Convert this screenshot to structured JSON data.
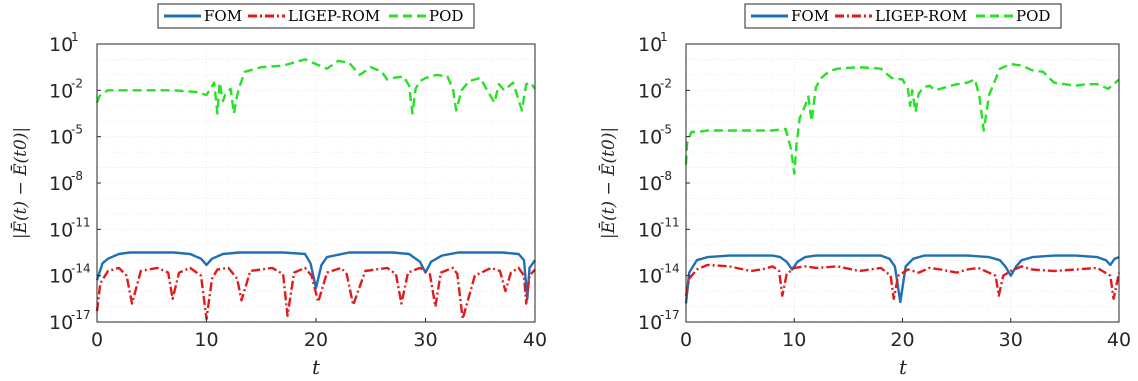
{
  "legend": {
    "labels": [
      "FOM",
      "LIGEP-ROM",
      "POD"
    ]
  },
  "chart_data": [
    {
      "type": "line",
      "xlabel": "t",
      "ylabel": "|Ē(t) − Ē(t0)|",
      "x_ticks": [
        "0",
        "10",
        "20",
        "30",
        "40"
      ],
      "y_tick_exponents": [
        "1",
        "-2",
        "-5",
        "-8",
        "-11",
        "-14",
        "-17"
      ],
      "xlim": [
        0,
        40
      ],
      "ylim_log10": [
        -17,
        1
      ],
      "yscale": "log",
      "grid": true,
      "legend_position": "top-center",
      "series": [
        {
          "name": "FOM",
          "color": "#1f6fb4",
          "style": "solid",
          "x": [
            0,
            0.5,
            1,
            2,
            3,
            5,
            7,
            8.5,
            9.5,
            10,
            10.5,
            11.5,
            13,
            15,
            17,
            19,
            19.5,
            20,
            20.5,
            21,
            23,
            25,
            27,
            28.5,
            29.5,
            30,
            30.5,
            31.5,
            33,
            35,
            37,
            38.5,
            39,
            39.3,
            39.5,
            40
          ],
          "y": [
            -14.3,
            -13.2,
            -12.9,
            -12.6,
            -12.5,
            -12.5,
            -12.5,
            -12.6,
            -12.9,
            -13.3,
            -12.9,
            -12.6,
            -12.5,
            -12.5,
            -12.5,
            -12.6,
            -13.2,
            -14.8,
            -13.3,
            -12.8,
            -12.5,
            -12.5,
            -12.5,
            -12.6,
            -13.1,
            -13.8,
            -13.1,
            -12.7,
            -12.5,
            -12.5,
            -12.5,
            -12.6,
            -13.0,
            -15.5,
            -13.5,
            -13.0
          ]
        },
        {
          "name": "LIGEP-ROM",
          "color": "#e31a1c",
          "style": "dash-dot",
          "x": [
            0,
            0.3,
            1,
            2,
            2.7,
            3.2,
            4,
            5.5,
            6.5,
            6.9,
            7.5,
            8.5,
            9.5,
            10,
            10.5,
            11,
            12,
            12.8,
            13.2,
            14,
            16,
            17,
            17.4,
            18,
            19,
            19.6,
            20.2,
            21,
            22.3,
            22.8,
            23.4,
            24.5,
            26.5,
            27.3,
            27.8,
            28.4,
            29.5,
            30.4,
            30.9,
            31.4,
            32.5,
            32.9,
            33.4,
            34.5,
            36,
            36.8,
            37.3,
            37.8,
            38.5,
            39,
            39.2,
            39.5,
            40
          ],
          "y": [
            -16.3,
            -14.5,
            -13.7,
            -13.5,
            -14.0,
            -15.8,
            -13.7,
            -13.5,
            -13.8,
            -15.5,
            -13.8,
            -13.5,
            -14.0,
            -16.8,
            -14.2,
            -13.6,
            -13.5,
            -14.2,
            -15.6,
            -13.7,
            -13.5,
            -13.9,
            -16.6,
            -13.8,
            -13.5,
            -14.0,
            -15.7,
            -13.8,
            -13.5,
            -13.9,
            -15.9,
            -13.7,
            -13.5,
            -13.9,
            -15.8,
            -13.8,
            -13.5,
            -13.9,
            -16.0,
            -13.8,
            -13.5,
            -13.9,
            -16.8,
            -14.0,
            -13.5,
            -13.7,
            -15.0,
            -13.8,
            -13.5,
            -14.0,
            -15.8,
            -14.0,
            -13.6
          ]
        },
        {
          "name": "POD",
          "color": "#27e127",
          "style": "dashed",
          "x": [
            0,
            0.2,
            0.5,
            1,
            3,
            5,
            7,
            9,
            10,
            10.7,
            11,
            11.2,
            11.5,
            11.7,
            12.2,
            12.5,
            12.8,
            13,
            13.5,
            14,
            15,
            17,
            19,
            20,
            21,
            22,
            23,
            24,
            25,
            26,
            26.5,
            27,
            28,
            28.5,
            28.8,
            29.1,
            29.5,
            30,
            31,
            32,
            32.5,
            32.8,
            33.3,
            34,
            35,
            35.8,
            36.3,
            36.7,
            37.2,
            38,
            38.8,
            39.2,
            39.6,
            40
          ],
          "y": [
            -2.8,
            -2.4,
            -2.2,
            -2.0,
            -2.0,
            -2.0,
            -2.0,
            -2.1,
            -2.3,
            -1.5,
            -3.5,
            -1.5,
            -2.7,
            -2.3,
            -1.9,
            -3.5,
            -2.3,
            -1.8,
            -0.8,
            -0.7,
            -0.5,
            -0.4,
            0.0,
            -0.3,
            -0.6,
            -0.1,
            -0.2,
            -1.0,
            -0.5,
            -0.8,
            -1.3,
            -1.2,
            -1.1,
            -1.7,
            -3.5,
            -1.9,
            -1.4,
            -1.2,
            -1.0,
            -1.1,
            -1.9,
            -3.3,
            -2.0,
            -1.4,
            -1.2,
            -2.2,
            -2.8,
            -1.6,
            -2.0,
            -1.5,
            -3.3,
            -1.6,
            -1.5,
            -1.9
          ]
        }
      ]
    },
    {
      "type": "line",
      "xlabel": "t",
      "ylabel": "|Ē(t) − Ē(t0)|",
      "x_ticks": [
        "0",
        "10",
        "20",
        "30",
        "40"
      ],
      "y_tick_exponents": [
        "1",
        "-2",
        "-5",
        "-8",
        "-11",
        "-14",
        "-17"
      ],
      "xlim": [
        0,
        40
      ],
      "ylim_log10": [
        -17,
        1
      ],
      "yscale": "log",
      "grid": true,
      "legend_position": "top-center",
      "series": [
        {
          "name": "FOM",
          "color": "#1f6fb4",
          "style": "solid",
          "x": [
            0,
            0.3,
            1,
            2,
            4,
            6,
            8,
            8.7,
            9.3,
            9.8,
            10.3,
            11,
            12,
            14,
            16,
            18,
            18.8,
            19.3,
            19.8,
            20.3,
            21,
            22,
            24,
            26,
            28,
            29,
            29.5,
            30,
            30.5,
            31,
            32,
            34,
            36,
            38,
            38.8,
            39.2,
            39.6,
            40
          ],
          "y": [
            -15.8,
            -13.8,
            -13.0,
            -12.8,
            -12.7,
            -12.7,
            -12.7,
            -12.8,
            -13.1,
            -13.6,
            -13.1,
            -12.8,
            -12.7,
            -12.7,
            -12.7,
            -12.7,
            -12.9,
            -13.4,
            -15.7,
            -13.4,
            -12.9,
            -12.7,
            -12.7,
            -12.7,
            -12.8,
            -13.0,
            -13.4,
            -14.0,
            -13.4,
            -13.0,
            -12.8,
            -12.7,
            -12.7,
            -12.8,
            -13.0,
            -13.3,
            -12.9,
            -12.8
          ]
        },
        {
          "name": "LIGEP-ROM",
          "color": "#e31a1c",
          "style": "dash-dot",
          "x": [
            0,
            0.3,
            1,
            2,
            4,
            6,
            7,
            8,
            8.6,
            8.9,
            9.3,
            10,
            11,
            12,
            14,
            16,
            17,
            18,
            18.9,
            19.2,
            19.6,
            20.5,
            21.5,
            22.5,
            23.5,
            25,
            26,
            27,
            28.6,
            28.9,
            29.3,
            30,
            31,
            32,
            34,
            36,
            38,
            39.2,
            39.5,
            40
          ],
          "y": [
            -15.3,
            -14.2,
            -13.6,
            -13.3,
            -13.4,
            -13.7,
            -13.6,
            -13.4,
            -13.7,
            -15.3,
            -13.9,
            -13.5,
            -13.4,
            -13.5,
            -13.4,
            -13.7,
            -13.6,
            -13.5,
            -14.0,
            -15.5,
            -14.0,
            -13.6,
            -13.8,
            -13.5,
            -13.6,
            -13.8,
            -13.6,
            -13.5,
            -14.0,
            -15.3,
            -14.0,
            -13.7,
            -13.4,
            -13.6,
            -13.7,
            -13.6,
            -13.5,
            -14.0,
            -15.5,
            -13.8
          ]
        },
        {
          "name": "POD",
          "color": "#27e127",
          "style": "dashed",
          "x": [
            0,
            0.1,
            0.5,
            1,
            2,
            4,
            6,
            8,
            9.2,
            9.7,
            10,
            10.2,
            10.5,
            11,
            11.3,
            11.6,
            12,
            12.5,
            13,
            13.5,
            14,
            16,
            18,
            19,
            20,
            20.5,
            20.7,
            20.9,
            21.2,
            21.5,
            22,
            22.5,
            23,
            24,
            25,
            26,
            26.7,
            27.1,
            27.5,
            28,
            29,
            30,
            31,
            32,
            33,
            34,
            35,
            36,
            37,
            38,
            39,
            40
          ],
          "y": [
            -6.8,
            -5.4,
            -4.7,
            -4.7,
            -4.6,
            -4.6,
            -4.6,
            -4.6,
            -4.5,
            -5.8,
            -7.4,
            -5.6,
            -3.8,
            -3.0,
            -2.4,
            -4.0,
            -1.8,
            -1.2,
            -0.9,
            -0.7,
            -0.6,
            -0.5,
            -0.6,
            -1.2,
            -1.3,
            -1.9,
            -3.0,
            -2.0,
            -3.4,
            -2.2,
            -1.8,
            -1.7,
            -2.0,
            -1.8,
            -1.6,
            -1.5,
            -1.3,
            -2.4,
            -4.6,
            -2.3,
            -0.6,
            -0.3,
            -0.4,
            -0.7,
            -0.8,
            -1.5,
            -1.6,
            -1.7,
            -1.6,
            -1.6,
            -1.9,
            -1.3
          ]
        }
      ]
    }
  ]
}
